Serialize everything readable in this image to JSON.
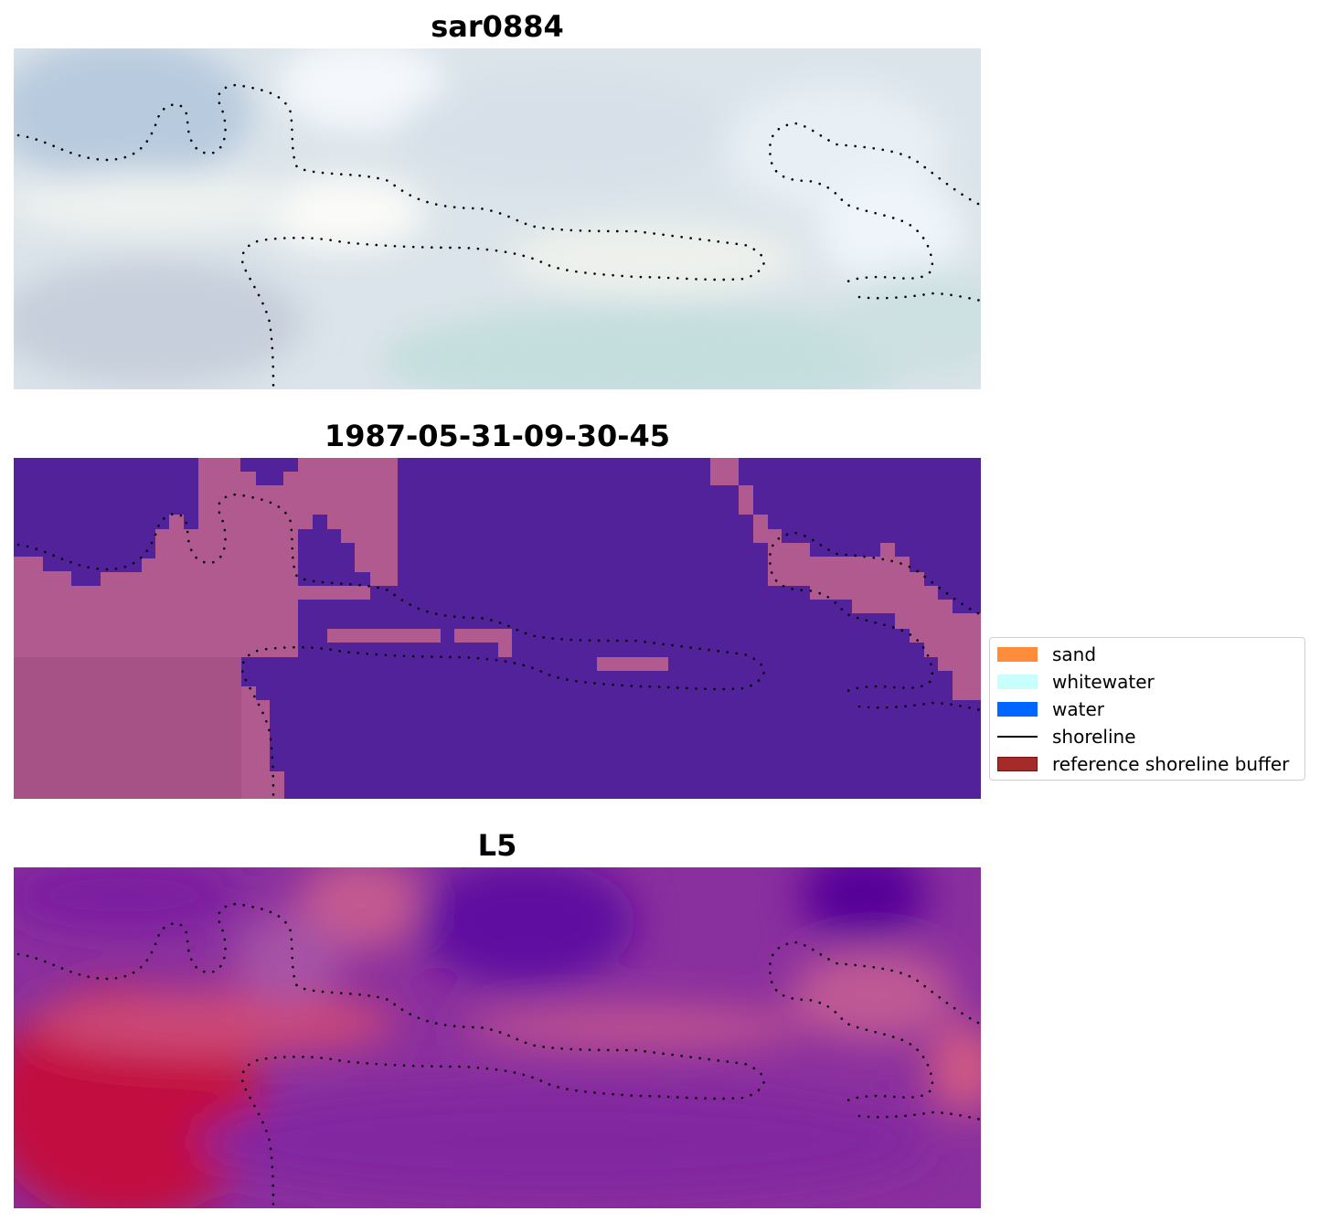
{
  "panels": [
    {
      "title": "sar0884",
      "style": "rgb"
    },
    {
      "title": "1987-05-31-09-30-45",
      "style": "classified"
    },
    {
      "title": "L5",
      "style": "index"
    }
  ],
  "legend": {
    "items": [
      {
        "label": "sand",
        "kind": "patch",
        "color": "#ff8c3a"
      },
      {
        "label": "whitewater",
        "kind": "patch",
        "color": "#c8fffc"
      },
      {
        "label": "water",
        "kind": "patch",
        "color": "#0066ff"
      },
      {
        "label": "shoreline",
        "kind": "line",
        "color": "#000000"
      },
      {
        "label": "reference shoreline buffer",
        "kind": "patch",
        "color": "#a52a2a"
      }
    ]
  },
  "colors": {
    "classified_water": "#52229a",
    "classified_sand_overlay": "#b05a90",
    "rgb_base": "#dde6ec",
    "index_low": "#5c0099",
    "index_high": "#c0003c",
    "shoreline_dots": "#000000"
  }
}
